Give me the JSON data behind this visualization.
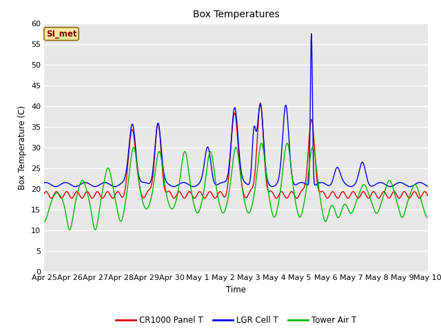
{
  "title": "Box Temperatures",
  "ylabel": "Box Temperature (C)",
  "xlabel": "Time",
  "ylim": [
    0,
    60
  ],
  "yticks": [
    0,
    5,
    10,
    15,
    20,
    25,
    30,
    35,
    40,
    45,
    50,
    55,
    60
  ],
  "bg_color": "#e8e8e8",
  "fig_bg_color": "#ffffff",
  "annotation_text": "SI_met",
  "legend": [
    "CR1000 Panel T",
    "LGR Cell T",
    "Tower Air T"
  ],
  "line_colors": [
    "#dd0000",
    "#0000dd",
    "#00bb00"
  ],
  "xtick_labels": [
    "Apr 25",
    "Apr 26",
    "Apr 27",
    "Apr 28",
    "Apr 29",
    "Apr 30",
    "May 1",
    "May 2",
    "May 3",
    "May 4",
    "May 5",
    "May 6",
    "May 7",
    "May 8",
    "May 9",
    "May 10"
  ]
}
